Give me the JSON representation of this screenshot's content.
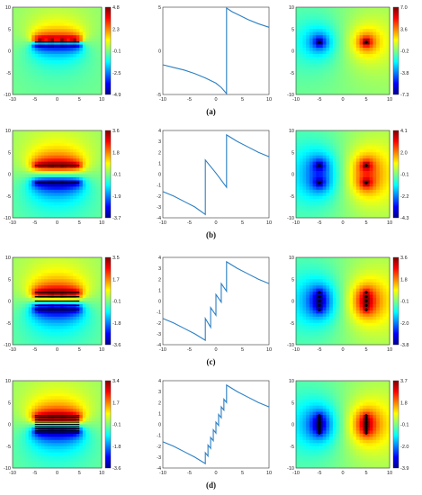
{
  "captions": [
    "(a)",
    "(b)",
    "(c)",
    "(d)"
  ],
  "colormap_stops": [
    "#00008f",
    "#0000ff",
    "#0080ff",
    "#00ffff",
    "#80ff80",
    "#ffff00",
    "#ff8000",
    "#ff0000",
    "#800000"
  ],
  "rows": [
    {
      "caption": "(a)",
      "left_map": {
        "type": "heatmap",
        "x_ticks": [
          "-10",
          "-5",
          "0",
          "5",
          "10"
        ],
        "y_ticks": [
          "10",
          "5",
          "0",
          "-5",
          "-10"
        ],
        "colorbar_ticks": [
          "4.8",
          "2.3",
          "-0.1",
          "-2.5",
          "-4.9"
        ],
        "xlim": [
          -10,
          10
        ],
        "ylim": [
          -10,
          10
        ],
        "plates": [
          2
        ]
      },
      "line_plot": {
        "type": "line",
        "x_ticks": [
          "-10",
          "-5",
          "0",
          "5",
          "10"
        ],
        "y_ticks": [
          "5",
          "0",
          "-5"
        ],
        "xlim": [
          -10,
          10
        ],
        "ylim": [
          -5,
          5
        ],
        "series": [
          {
            "x": [
              -10,
              -8,
              -6,
              -4,
              -2,
              0,
              1,
              2,
              2,
              3,
              4,
              6,
              8,
              10
            ],
            "y": [
              -1.6,
              -1.9,
              -2.2,
              -2.6,
              -3.1,
              -3.7,
              -4.2,
              -4.9,
              4.9,
              4.5,
              4.2,
              3.6,
              3.1,
              2.7
            ]
          }
        ]
      },
      "right_map": {
        "type": "heatmap",
        "x_ticks": [
          "-10",
          "-5",
          "0",
          "5",
          "10"
        ],
        "y_ticks": [
          "10",
          "5",
          "0",
          "-5",
          "-10"
        ],
        "colorbar_ticks": [
          "7.0",
          "3.6",
          "-0.2",
          "-3.8",
          "-7.3"
        ],
        "xlim": [
          -10,
          10
        ],
        "ylim": [
          -10,
          10
        ],
        "sources": [
          [
            -5,
            2
          ],
          [
            5,
            2
          ]
        ]
      }
    },
    {
      "caption": "(b)",
      "left_map": {
        "type": "heatmap",
        "x_ticks": [
          "-10",
          "-5",
          "0",
          "5",
          "10"
        ],
        "y_ticks": [
          "10",
          "5",
          "0",
          "-5",
          "-10"
        ],
        "colorbar_ticks": [
          "3.6",
          "1.8",
          "-0.1",
          "-1.9",
          "-3.7"
        ],
        "xlim": [
          -10,
          10
        ],
        "ylim": [
          -10,
          10
        ],
        "plates": [
          2,
          -2
        ]
      },
      "line_plot": {
        "type": "line",
        "x_ticks": [
          "-10",
          "-5",
          "0",
          "5",
          "10"
        ],
        "y_ticks": [
          "4",
          "3",
          "2",
          "1",
          "0",
          "-1",
          "-2",
          "-3",
          "-4"
        ],
        "xlim": [
          -10,
          10
        ],
        "ylim": [
          -4,
          4
        ],
        "series": [
          {
            "x": [
              -10,
              -8,
              -6,
              -4,
              -2,
              -2,
              0,
              2,
              2,
              4,
              6,
              8,
              10
            ],
            "y": [
              -1.6,
              -2.0,
              -2.5,
              -3.0,
              -3.7,
              1.3,
              0.1,
              -1.2,
              3.6,
              3.0,
              2.5,
              2.0,
              1.6
            ]
          }
        ]
      },
      "right_map": {
        "type": "heatmap",
        "x_ticks": [
          "-10",
          "-5",
          "0",
          "5",
          "10"
        ],
        "y_ticks": [
          "10",
          "5",
          "0",
          "-5",
          "-10"
        ],
        "colorbar_ticks": [
          "4.1",
          "2.0",
          "-0.1",
          "-2.2",
          "-4.3"
        ],
        "xlim": [
          -10,
          10
        ],
        "ylim": [
          -10,
          10
        ],
        "sources": [
          [
            -5,
            2
          ],
          [
            5,
            2
          ],
          [
            -5,
            -2
          ],
          [
            5,
            -2
          ]
        ]
      }
    },
    {
      "caption": "(c)",
      "left_map": {
        "type": "heatmap",
        "x_ticks": [
          "-10",
          "-5",
          "0",
          "5",
          "10"
        ],
        "y_ticks": [
          "10",
          "5",
          "0",
          "-5",
          "-10"
        ],
        "colorbar_ticks": [
          "3.5",
          "1.7",
          "-0.1",
          "-1.8",
          "-3.6"
        ],
        "xlim": [
          -10,
          10
        ],
        "ylim": [
          -10,
          10
        ],
        "plates": [
          2,
          1,
          0,
          -1,
          -2
        ]
      },
      "line_plot": {
        "type": "line",
        "x_ticks": [
          "-10",
          "-5",
          "0",
          "5",
          "10"
        ],
        "y_ticks": [
          "4",
          "3",
          "2",
          "1",
          "0",
          "-1",
          "-2",
          "-3",
          "-4"
        ],
        "xlim": [
          -10,
          10
        ],
        "ylim": [
          -4,
          4
        ],
        "series": [
          {
            "x": [
              -10,
              -8,
              -6,
              -4,
              -2,
              -2,
              -1,
              -1,
              0,
              0,
              1,
              1,
              2,
              2,
              4,
              6,
              8,
              10
            ],
            "y": [
              -1.6,
              -2.0,
              -2.5,
              -3.0,
              -3.6,
              -1.6,
              -2.4,
              -0.6,
              -1.3,
              0.6,
              -0.1,
              1.6,
              0.9,
              3.6,
              3.0,
              2.5,
              2.0,
              1.6
            ]
          }
        ]
      },
      "right_map": {
        "type": "heatmap",
        "x_ticks": [
          "-10",
          "-5",
          "0",
          "5",
          "10"
        ],
        "y_ticks": [
          "10",
          "5",
          "0",
          "-5",
          "-10"
        ],
        "colorbar_ticks": [
          "3.6",
          "1.8",
          "-0.1",
          "-2.0",
          "-3.8"
        ],
        "xlim": [
          -10,
          10
        ],
        "ylim": [
          -10,
          10
        ],
        "sources": [
          [
            -5,
            2
          ],
          [
            5,
            2
          ],
          [
            -5,
            1
          ],
          [
            5,
            1
          ],
          [
            -5,
            0
          ],
          [
            5,
            0
          ],
          [
            -5,
            -1
          ],
          [
            5,
            -1
          ],
          [
            -5,
            -2
          ],
          [
            5,
            -2
          ]
        ]
      }
    },
    {
      "caption": "(d)",
      "left_map": {
        "type": "heatmap",
        "x_ticks": [
          "-10",
          "-5",
          "0",
          "5",
          "10"
        ],
        "y_ticks": [
          "10",
          "5",
          "0",
          "-5",
          "-10"
        ],
        "colorbar_ticks": [
          "3.4",
          "1.7",
          "-0.1",
          "-1.8",
          "-3.6"
        ],
        "xlim": [
          -10,
          10
        ],
        "ylim": [
          -10,
          10
        ],
        "plates": [
          2,
          1.5,
          1,
          0.5,
          0,
          -0.5,
          -1,
          -1.5,
          -2
        ]
      },
      "line_plot": {
        "type": "line",
        "x_ticks": [
          "-10",
          "-5",
          "0",
          "5",
          "10"
        ],
        "y_ticks": [
          "4",
          "3",
          "2",
          "1",
          "0",
          "-1",
          "-2",
          "-3",
          "-4"
        ],
        "xlim": [
          -10,
          10
        ],
        "ylim": [
          -4,
          4
        ],
        "series": [
          {
            "x": [
              -10,
              -8,
              -6,
              -4,
              -2,
              -2,
              -1.5,
              -1.5,
              -1,
              -1,
              -0.5,
              -0.5,
              0,
              0,
              0.5,
              0.5,
              1,
              1,
              1.5,
              1.5,
              2,
              2,
              4,
              6,
              8,
              10
            ],
            "y": [
              -1.6,
              -2.0,
              -2.5,
              -3.0,
              -3.6,
              -2.6,
              -2.9,
              -1.9,
              -2.2,
              -1.2,
              -1.5,
              -0.5,
              -0.8,
              0.2,
              -0.1,
              0.9,
              0.6,
              1.6,
              1.3,
              2.3,
              2.0,
              3.6,
              3.0,
              2.5,
              2.0,
              1.6
            ]
          }
        ]
      },
      "right_map": {
        "type": "heatmap",
        "x_ticks": [
          "-10",
          "-5",
          "0",
          "5",
          "10"
        ],
        "y_ticks": [
          "10",
          "5",
          "0",
          "-5",
          "-10"
        ],
        "colorbar_ticks": [
          "3.7",
          "1.8",
          "-0.1",
          "-2.0",
          "-3.9"
        ],
        "xlim": [
          -10,
          10
        ],
        "ylim": [
          -10,
          10
        ],
        "sources": [
          [
            -5,
            2
          ],
          [
            5,
            2
          ],
          [
            -5,
            1.5
          ],
          [
            5,
            1.5
          ],
          [
            -5,
            1
          ],
          [
            5,
            1
          ],
          [
            -5,
            0.5
          ],
          [
            5,
            0.5
          ],
          [
            -5,
            0
          ],
          [
            5,
            0
          ],
          [
            -5,
            -0.5
          ],
          [
            5,
            -0.5
          ],
          [
            -5,
            -1
          ],
          [
            5,
            -1
          ],
          [
            -5,
            -1.5
          ],
          [
            5,
            -1.5
          ],
          [
            -5,
            -2
          ],
          [
            5,
            -2
          ]
        ]
      }
    }
  ]
}
